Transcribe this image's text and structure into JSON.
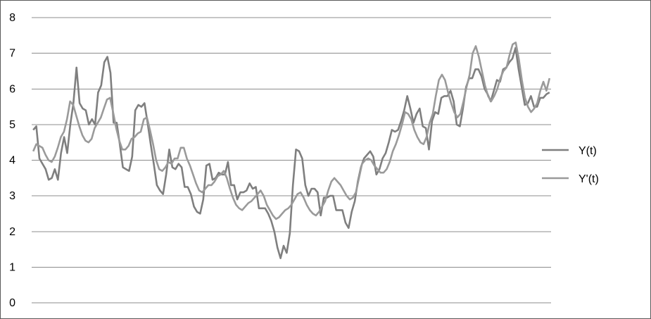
{
  "chart_data": {
    "type": "line",
    "title": "",
    "xlabel": "",
    "ylabel": "",
    "ylim": [
      0,
      8
    ],
    "yticks": [
      "0",
      "1",
      "2",
      "3",
      "4",
      "5",
      "6",
      "7",
      "8"
    ],
    "grid": true,
    "legend_position": "right",
    "series": [
      {
        "name": "Y(t)",
        "color": "#7f7f7f",
        "values": [
          4.85,
          4.95,
          4.05,
          3.9,
          3.75,
          3.45,
          3.5,
          3.75,
          3.45,
          4.2,
          4.65,
          4.2,
          5.0,
          5.6,
          6.6,
          5.6,
          5.45,
          5.4,
          5.0,
          5.15,
          5.0,
          5.9,
          6.1,
          6.75,
          6.9,
          6.45,
          5.05,
          5.05,
          4.45,
          3.8,
          3.75,
          3.7,
          4.1,
          5.4,
          5.55,
          5.5,
          5.6,
          5.05,
          4.45,
          3.9,
          3.3,
          3.15,
          3.05,
          3.6,
          4.3,
          3.8,
          3.75,
          3.9,
          3.8,
          3.25,
          3.25,
          3.05,
          2.7,
          2.55,
          2.5,
          2.9,
          3.85,
          3.9,
          3.45,
          3.5,
          3.65,
          3.6,
          3.6,
          3.95,
          3.3,
          3.3,
          2.9,
          3.1,
          3.1,
          3.15,
          3.35,
          3.2,
          3.25,
          2.65,
          2.65,
          2.65,
          2.5,
          2.3,
          2.0,
          1.55,
          1.25,
          1.6,
          1.4,
          1.95,
          3.3,
          4.3,
          4.25,
          4.05,
          3.3,
          3.0,
          3.2,
          3.2,
          3.1,
          2.45,
          2.95,
          2.95,
          3.0,
          3.0,
          2.6,
          2.6,
          2.6,
          2.25,
          2.1,
          2.55,
          2.85,
          3.4,
          3.8,
          4.05,
          4.15,
          4.25,
          4.1,
          3.6,
          3.75,
          4.05,
          4.2,
          4.5,
          4.85,
          4.8,
          4.85,
          5.1,
          5.4,
          5.8,
          5.45,
          5.05,
          5.3,
          5.45,
          4.95,
          4.9,
          4.3,
          5.1,
          5.35,
          5.3,
          5.75,
          5.8,
          5.8,
          5.95,
          5.65,
          5.0,
          4.95,
          5.45,
          6.05,
          6.3,
          6.3,
          6.55,
          6.55,
          6.35,
          6.0,
          5.85,
          5.65,
          5.95,
          6.25,
          6.2,
          6.55,
          6.6,
          6.75,
          6.85,
          7.15,
          6.55,
          6.05,
          5.55,
          5.6,
          5.8,
          5.5,
          5.5,
          5.75,
          5.75,
          5.85,
          5.9
        ]
      },
      {
        "name": "Y'(t)",
        "color": "#9a9a9a",
        "values": [
          4.25,
          4.45,
          4.4,
          4.35,
          4.15,
          4.0,
          3.95,
          4.1,
          4.35,
          4.65,
          4.8,
          5.15,
          5.65,
          5.55,
          5.25,
          4.95,
          4.7,
          4.55,
          4.5,
          4.6,
          4.9,
          5.05,
          5.2,
          5.45,
          5.7,
          5.75,
          5.35,
          4.9,
          4.55,
          4.3,
          4.3,
          4.4,
          4.6,
          4.65,
          4.75,
          4.8,
          5.15,
          5.2,
          4.85,
          4.45,
          4.0,
          3.75,
          3.7,
          3.8,
          3.95,
          3.9,
          4.05,
          4.05,
          4.35,
          4.35,
          4.05,
          3.85,
          3.6,
          3.35,
          3.15,
          3.1,
          3.2,
          3.3,
          3.3,
          3.4,
          3.55,
          3.6,
          3.7,
          3.5,
          3.2,
          2.95,
          2.75,
          2.65,
          2.6,
          2.7,
          2.8,
          2.85,
          2.95,
          3.05,
          3.15,
          3.0,
          2.75,
          2.6,
          2.45,
          2.35,
          2.4,
          2.5,
          2.6,
          2.65,
          2.75,
          2.9,
          3.05,
          3.1,
          2.95,
          2.75,
          2.6,
          2.5,
          2.45,
          2.55,
          2.7,
          2.85,
          3.15,
          3.4,
          3.5,
          3.4,
          3.3,
          3.15,
          3.0,
          2.9,
          2.95,
          3.1,
          3.5,
          3.9,
          4.0,
          4.05,
          4.0,
          3.85,
          3.75,
          3.65,
          3.65,
          3.75,
          3.95,
          4.25,
          4.45,
          4.7,
          5.0,
          5.35,
          5.3,
          5.15,
          4.85,
          4.65,
          4.5,
          4.45,
          4.65,
          5.05,
          5.3,
          5.8,
          6.25,
          6.4,
          6.25,
          5.9,
          5.6,
          5.35,
          5.2,
          5.3,
          5.65,
          6.05,
          6.4,
          7.0,
          7.2,
          6.9,
          6.5,
          6.1,
          5.8,
          5.65,
          5.8,
          6.0,
          6.3,
          6.5,
          6.6,
          6.95,
          7.25,
          7.3,
          6.85,
          6.25,
          5.75,
          5.5,
          5.35,
          5.45,
          5.6,
          5.95,
          6.2,
          5.95,
          6.3
        ]
      }
    ]
  }
}
